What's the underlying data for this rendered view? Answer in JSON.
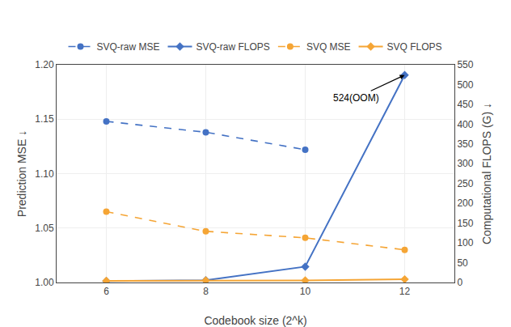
{
  "chart_data": {
    "type": "line",
    "x_label": "Codebook size (2^k)",
    "y_label": "Prediction MSE ↓",
    "y2_label": "Computational FLOPS (G) ↓",
    "xlim": [
      5,
      13
    ],
    "xticks": [
      6,
      8,
      10,
      12
    ],
    "ylim": [
      1.0,
      1.2
    ],
    "yticks": [
      {
        "value": 1.0,
        "label": "1.00"
      },
      {
        "value": 1.05,
        "label": "1.05"
      },
      {
        "value": 1.1,
        "label": "1.10"
      },
      {
        "value": 1.15,
        "label": "1.15"
      },
      {
        "value": 1.2,
        "label": "1.20"
      }
    ],
    "y2lim": [
      0,
      550
    ],
    "y2ticks": [
      0,
      50,
      100,
      150,
      200,
      250,
      300,
      350,
      400,
      450,
      500,
      550
    ],
    "grid": true,
    "legend": "top",
    "series": [
      {
        "name": "SVQ-raw MSE",
        "color": "#4472c4",
        "x": [
          6,
          8,
          10
        ],
        "values": [
          1.148,
          1.138,
          1.122
        ],
        "axis": "y",
        "marker": "circle",
        "line_style": "dashed"
      },
      {
        "name": "SVQ-raw FLOPS",
        "color": "#4472c4",
        "x": [
          6,
          8,
          10,
          12
        ],
        "values": [
          3.5,
          5.5,
          40.0,
          524.0
        ],
        "axis": "y2",
        "marker": "diamond",
        "line_style": "solid"
      },
      {
        "name": "SVQ MSE",
        "color": "#f5a535",
        "x": [
          6,
          8,
          10,
          12
        ],
        "values": [
          1.065,
          1.047,
          1.041,
          1.03
        ],
        "axis": "y",
        "marker": "circle",
        "line_style": "dashed"
      },
      {
        "name": "SVQ FLOPS",
        "color": "#f5a535",
        "x": [
          6,
          8,
          10,
          12
        ],
        "values": [
          4.0,
          5.0,
          5.0,
          8.0
        ],
        "axis": "y2",
        "marker": "diamond",
        "line_style": "solid"
      }
    ],
    "annotations": [
      {
        "text": "524(OOM)",
        "x": 12,
        "y": 524,
        "axis": "y2"
      }
    ]
  }
}
